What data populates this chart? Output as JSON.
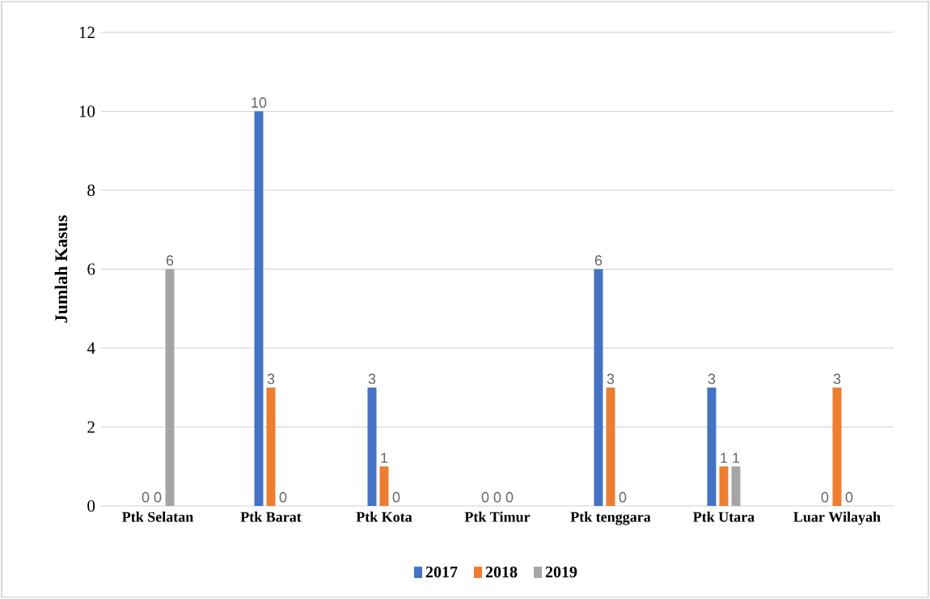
{
  "chart_data": {
    "type": "bar",
    "ylabel": "Jumlah Kasus",
    "categories": [
      "Ptk Selatan",
      "Ptk Barat",
      "Ptk Kota",
      "Ptk Timur",
      "Ptk tenggara",
      "Ptk Utara",
      "Luar Wilayah"
    ],
    "series": [
      {
        "name": "2017",
        "color": "#4472c4",
        "values": [
          0,
          10,
          3,
          0,
          6,
          3,
          0
        ]
      },
      {
        "name": "2018",
        "color": "#ed7d31",
        "values": [
          0,
          3,
          1,
          0,
          3,
          1,
          3
        ]
      },
      {
        "name": "2019",
        "color": "#a5a5a5",
        "values": [
          6,
          0,
          0,
          0,
          0,
          1,
          0
        ]
      }
    ],
    "ylim": [
      0,
      12
    ],
    "yticks": [
      0,
      2,
      4,
      6,
      8,
      10,
      12
    ],
    "grid": "y",
    "legend": "bottom",
    "data_labels": true
  }
}
